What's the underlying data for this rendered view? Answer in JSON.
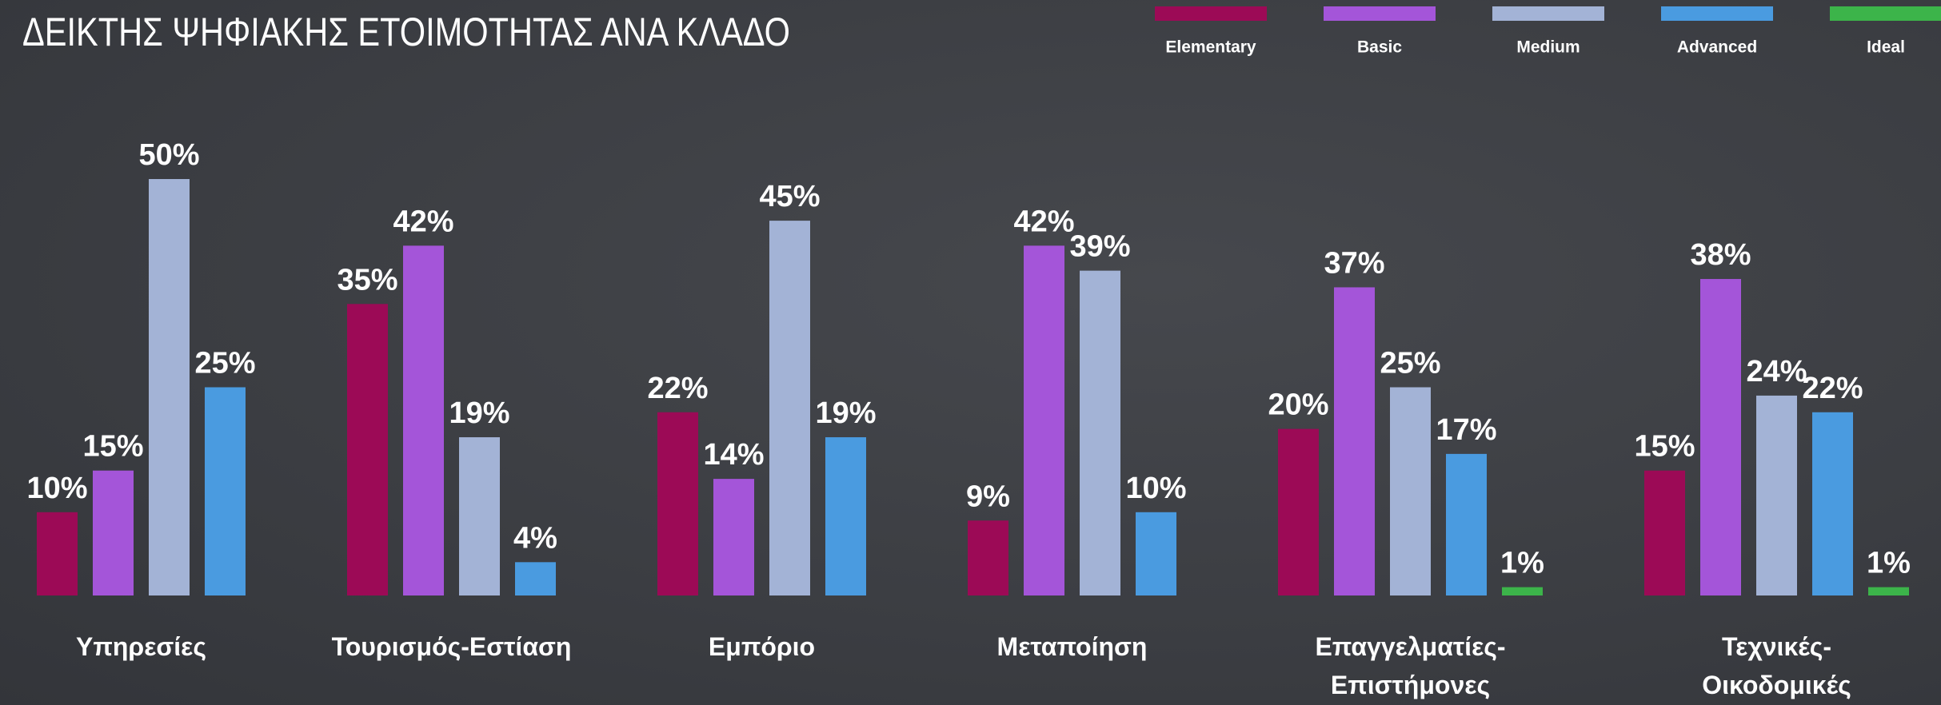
{
  "chart_data": {
    "type": "bar",
    "title": "ΔΕΙΚΤΗΣ ΨΗΦΙΑΚΗΣ ΕΤΟΙΜΟΤΗΤΑΣ ΑΝΑ ΚΛΑΔΟ",
    "categories": [
      "Υπηρεσίες",
      "Τουρισμός-Εστίαση",
      "Εμπόριο",
      "Μεταποίηση",
      "Επαγγελματίες-Επιστήμονες",
      "Τεχνικές-Οικοδομικές"
    ],
    "ylim": [
      0,
      50
    ],
    "series": [
      {
        "name": "Elementary",
        "color": "#9c0a56",
        "values": [
          10,
          35,
          22,
          9,
          20,
          15
        ],
        "value_labels": [
          "10%",
          "35%",
          "22%",
          "9%",
          "20%",
          "15%"
        ]
      },
      {
        "name": "Basic",
        "color": "#a455d9",
        "values": [
          15,
          42,
          14,
          42,
          37,
          38
        ],
        "value_labels": [
          "15%",
          "42%",
          "14%",
          "42%",
          "37%",
          "38%"
        ]
      },
      {
        "name": "Medium",
        "color": "#a3b3d6",
        "values": [
          50,
          19,
          45,
          39,
          25,
          24
        ],
        "value_labels": [
          "50%",
          "19%",
          "45%",
          "39%",
          "25%",
          "24%"
        ]
      },
      {
        "name": "Advanced",
        "color": "#4a9be0",
        "values": [
          25,
          4,
          19,
          10,
          17,
          22
        ],
        "value_labels": [
          "25%",
          "4%",
          "19%",
          "10%",
          "17%",
          "22%"
        ]
      },
      {
        "name": "Ideal",
        "color": "#3cb44a",
        "values": [
          null,
          null,
          null,
          null,
          1,
          1
        ],
        "value_labels": [
          null,
          null,
          null,
          null,
          "1%",
          "1%"
        ]
      }
    ]
  }
}
